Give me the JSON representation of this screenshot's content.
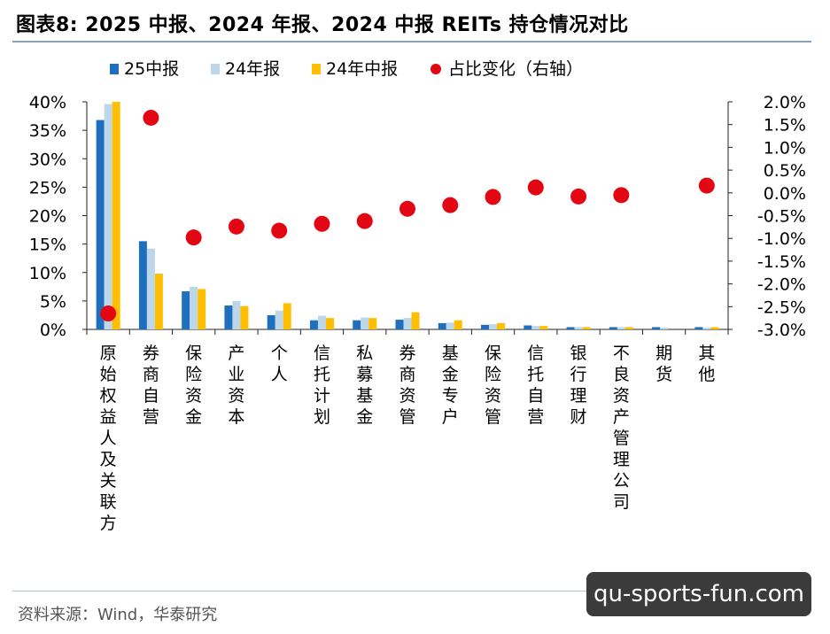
{
  "figure": {
    "title": "图表8:  2025 中报、2024 年报、2024 中报 REITs 持仓情况对比",
    "source": "资料来源：Wind，华泰研究",
    "watermark": "qu-sports-fun.com"
  },
  "chart_data": {
    "type": "bar",
    "categories": [
      "原始权益人及关联方",
      "券商自营",
      "保险资金",
      "产业资本",
      "个人",
      "信托计划",
      "私募基金",
      "券商资管",
      "基金专户",
      "保险资管",
      "信托自营",
      "银行理财",
      "不良资产管理公司",
      "期货",
      "其他"
    ],
    "series": [
      {
        "name": "25中报",
        "color": "#1f6fbf",
        "values": [
          36.8,
          15.5,
          6.7,
          4.2,
          2.5,
          1.6,
          1.6,
          1.7,
          1.1,
          0.8,
          0.7,
          0.4,
          0.4,
          0.4,
          0.4
        ]
      },
      {
        "name": "24年报",
        "color": "#bcd6ea",
        "values": [
          39.6,
          14.2,
          7.5,
          5.0,
          3.3,
          2.4,
          2.1,
          2.0,
          1.2,
          0.9,
          0.6,
          0.4,
          0.4,
          0.3,
          0.3
        ]
      },
      {
        "name": "24年中报",
        "color": "#ffbf00",
        "values": [
          40.0,
          9.8,
          7.1,
          4.1,
          4.6,
          2.0,
          2.0,
          3.0,
          1.6,
          1.1,
          0.6,
          0.4,
          0.4,
          0.0,
          0.4
        ]
      }
    ],
    "line_series": {
      "name": "占比变化（右轴）",
      "color": "#e30613",
      "values": [
        -2.65,
        1.65,
        -0.98,
        -0.74,
        -0.83,
        -0.68,
        -0.62,
        -0.35,
        -0.27,
        -0.09,
        0.12,
        -0.08,
        -0.05,
        null,
        0.16
      ]
    },
    "y_left": {
      "min": 0,
      "max": 40,
      "ticks": [
        "0%",
        "5%",
        "10%",
        "15%",
        "20%",
        "25%",
        "30%",
        "35%",
        "40%"
      ]
    },
    "y_right": {
      "min": -3.0,
      "max": 2.0,
      "ticks": [
        "-3.0%",
        "-2.5%",
        "-2.0%",
        "-1.5%",
        "-1.0%",
        "-0.5%",
        "0.0%",
        "0.5%",
        "1.0%",
        "1.5%",
        "2.0%"
      ]
    },
    "legend_position": "top",
    "grid": false
  }
}
